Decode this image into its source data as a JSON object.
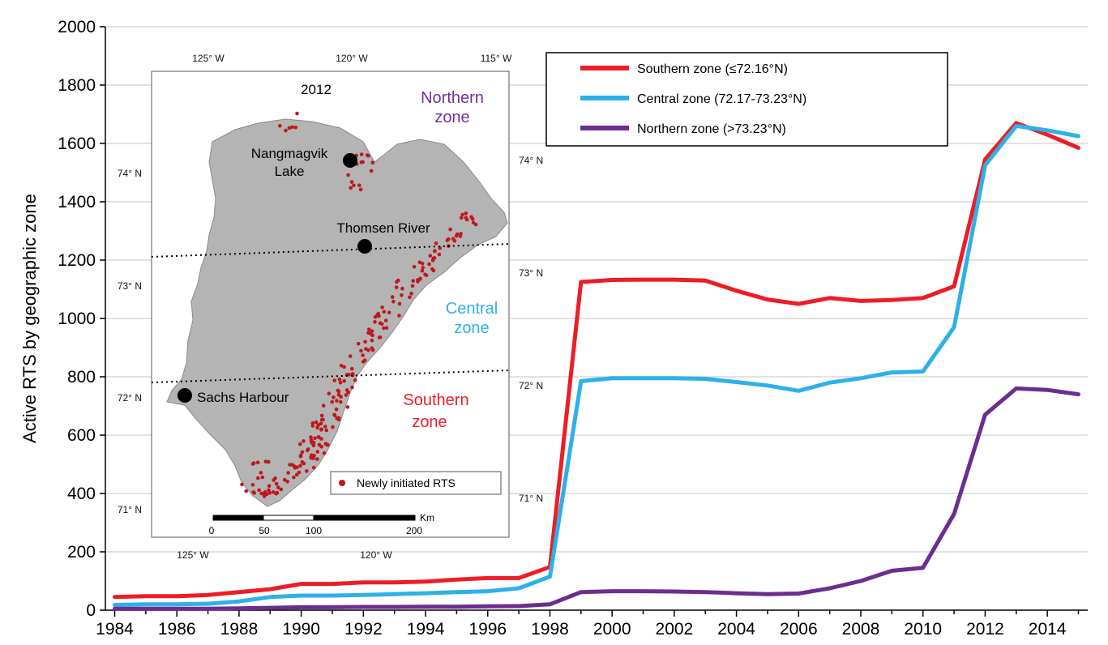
{
  "chart_data": {
    "type": "line",
    "title": "",
    "xlabel": "",
    "ylabel": "Active RTS by geographic zone",
    "ylim": [
      0,
      2000
    ],
    "xlim": [
      1983.7,
      2015.3
    ],
    "yticks": [
      "0",
      "200",
      "400",
      "600",
      "800",
      "1000",
      "1200",
      "1400",
      "1600",
      "1800",
      "2000"
    ],
    "xticks": [
      "1984",
      "1986",
      "1988",
      "1990",
      "1992",
      "1994",
      "1996",
      "1998",
      "2000",
      "2002",
      "2004",
      "2006",
      "2008",
      "2010",
      "2012",
      "2014"
    ],
    "grid": "horizontal",
    "legend": "top-right",
    "x": [
      1984,
      1985,
      1986,
      1987,
      1988,
      1989,
      1990,
      1991,
      1992,
      1993,
      1994,
      1995,
      1996,
      1997,
      1998,
      1999,
      2000,
      2001,
      2002,
      2003,
      2004,
      2005,
      2006,
      2007,
      2008,
      2009,
      2010,
      2011,
      2012,
      2013,
      2014,
      2015
    ],
    "series": [
      {
        "name": "Southern zone (≤72.16°N)",
        "color": "#ee1c25",
        "values": [
          45,
          48,
          48,
          52,
          62,
          72,
          90,
          90,
          95,
          95,
          98,
          105,
          110,
          110,
          148,
          1125,
          1132,
          1133,
          1133,
          1130,
          1095,
          1065,
          1050,
          1070,
          1060,
          1063,
          1070,
          1110,
          1545,
          1670,
          1630,
          1585
        ]
      },
      {
        "name": "Central zone (72.17-73.23°N)",
        "color": "#2eb0e8",
        "values": [
          18,
          20,
          20,
          22,
          30,
          45,
          50,
          50,
          52,
          55,
          58,
          62,
          65,
          75,
          115,
          785,
          795,
          795,
          795,
          793,
          782,
          770,
          752,
          780,
          795,
          815,
          818,
          970,
          1525,
          1660,
          1645,
          1625
        ]
      },
      {
        "name": "Northern zone (>73.23°N)",
        "color": "#6b2d91",
        "values": [
          5,
          5,
          5,
          5,
          6,
          8,
          10,
          10,
          11,
          11,
          12,
          12,
          13,
          14,
          20,
          62,
          65,
          65,
          64,
          62,
          58,
          55,
          57,
          75,
          100,
          135,
          145,
          330,
          670,
          760,
          755,
          740
        ]
      }
    ]
  },
  "inset_map": {
    "year": "2012",
    "top_lon_ticks": [
      "125° W",
      "120° W",
      "115° W"
    ],
    "bottom_lon_ticks": [
      "125° W",
      "120° W"
    ],
    "left_lat_ticks": [
      "74° N",
      "73° N",
      "72° N",
      "71° N"
    ],
    "right_lat_ticks": [
      "74° N",
      "73° N",
      "72° N",
      "71° N"
    ],
    "places": [
      {
        "name": "Nangmagvik Lake",
        "line1": "Nangmagvik",
        "line2": "Lake"
      },
      {
        "name": "Thomsen River"
      },
      {
        "name": "Sachs Harbour"
      }
    ],
    "zone_labels": {
      "northern": {
        "line1": "Northern",
        "line2": "zone",
        "color": "#7030a0"
      },
      "central": {
        "line1": "Central",
        "line2": "zone",
        "color": "#2eb0e8"
      },
      "southern": {
        "line1": "Southern",
        "line2": "zone",
        "color": "#ee1c25"
      }
    },
    "legend_label": "Newly initiated RTS",
    "point_color": "#c0171d",
    "scale_unit": "Km",
    "scale_ticks": [
      "0",
      "50",
      "100",
      "200"
    ]
  }
}
